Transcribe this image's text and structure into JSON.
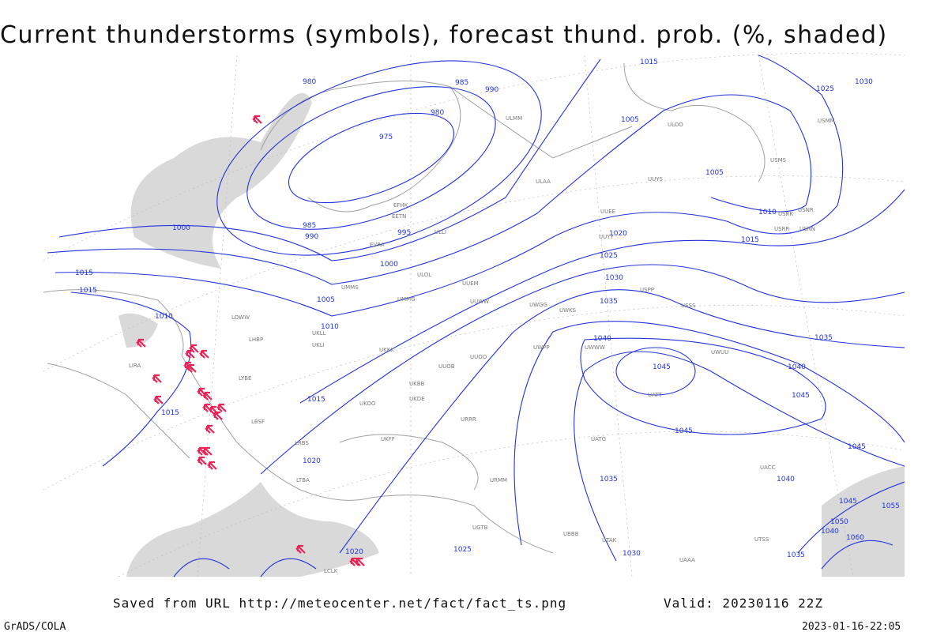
{
  "header": {
    "title": "Current thunderstorms (symbols), forecast thund. prob. (%, shaded)"
  },
  "isobar_labels": [
    "980",
    "985",
    "990",
    "980",
    "975",
    "1015",
    "1005",
    "1005",
    "1025",
    "1030",
    "1010",
    "1015",
    "985",
    "990",
    "995",
    "1000",
    "1000",
    "1020",
    "1025",
    "1030",
    "1035",
    "1040",
    "1045",
    "1040",
    "1045",
    "1045",
    "1035",
    "1015",
    "1015",
    "1010",
    "1005",
    "1010",
    "1015",
    "1015",
    "1020",
    "1035",
    "1040",
    "1045",
    "1030",
    "1025",
    "1020",
    "1045",
    "1050",
    "1055",
    "1060",
    "1035",
    "1040"
  ],
  "stations": [
    "ULMM",
    "ULOO",
    "USRK",
    "USNR",
    "USRR",
    "USNN",
    "USMS",
    "USMM",
    "ULLI",
    "ULAA",
    "UUYS",
    "UUYY",
    "UUEM",
    "UUWW",
    "UUEE",
    "UMMS",
    "UMMG",
    "UKKK",
    "UKLL",
    "UKLI",
    "EVRA",
    "EETN",
    "EFHK",
    "ULOL",
    "UUOO",
    "UWKS",
    "UWWW",
    "UWGG",
    "UWPP",
    "USPP",
    "USSS",
    "UATT",
    "UACC",
    "UAAA",
    "URMM",
    "URRR",
    "UKBB",
    "UKDE",
    "UKOO",
    "LBSF",
    "LRBS",
    "LYBE",
    "LHBP",
    "LOWW",
    "LIRA",
    "UTAK",
    "UATG",
    "UTSS",
    "LTBA",
    "LCLK",
    "UGTB",
    "UBBB",
    "UKFF",
    "UUOB",
    "UWUU"
  ],
  "footer": {
    "saved": "Saved from URL http://meteocenter.net/fact/fact_ts.png",
    "valid": "Valid: 20230116 22Z",
    "credit": "GrADS/COLA",
    "timestamp": "2023-01-16-22:05"
  }
}
